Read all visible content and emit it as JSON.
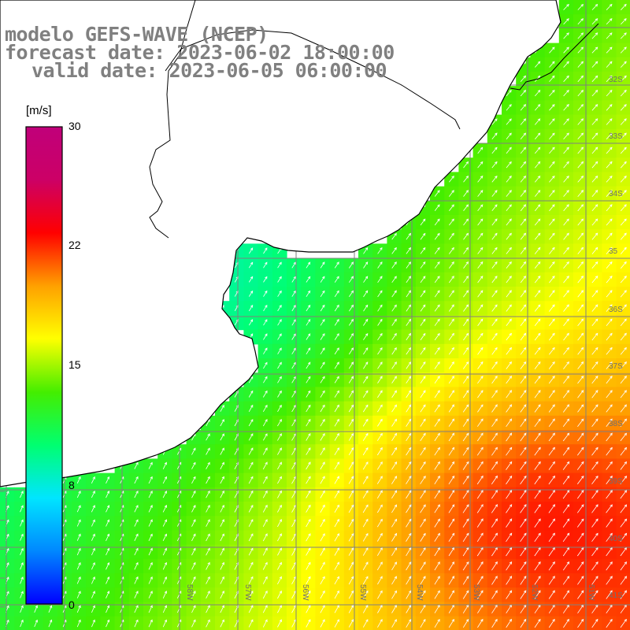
{
  "title": {
    "line1": "modelo GEFS-WAVE (NCEP)",
    "line2": "forecast date: 2023-06-02 18:00:00",
    "line3": "valid date: 2023-06-05 06:00:00"
  },
  "colorbar": {
    "unit": "[m/s]",
    "min": 0,
    "max": 30,
    "ticks": [
      "30",
      "22",
      "15",
      "8",
      "0"
    ],
    "tick_values": [
      30,
      22,
      15,
      8,
      0
    ],
    "colors": [
      "#0000ff",
      "#0088ff",
      "#00e5ff",
      "#00ff70",
      "#44ee00",
      "#ffff00",
      "#ffa000",
      "#ff0000",
      "#cc0066",
      "#c0007a"
    ]
  },
  "map": {
    "lat_labels": [
      "32S",
      "33S",
      "34S",
      "35",
      "36S",
      "37S",
      "38S",
      "39S",
      "40S",
      "41S"
    ],
    "lon_labels": [
      "58W",
      "57W",
      "56W",
      "55W",
      "54W",
      "53W",
      "52W",
      "51W"
    ],
    "field": "wind speed with direction arrows",
    "colors": {
      "land": "#ffffff",
      "coast": "#000000",
      "grid": "#808080",
      "arrow": "#ffffff"
    }
  }
}
